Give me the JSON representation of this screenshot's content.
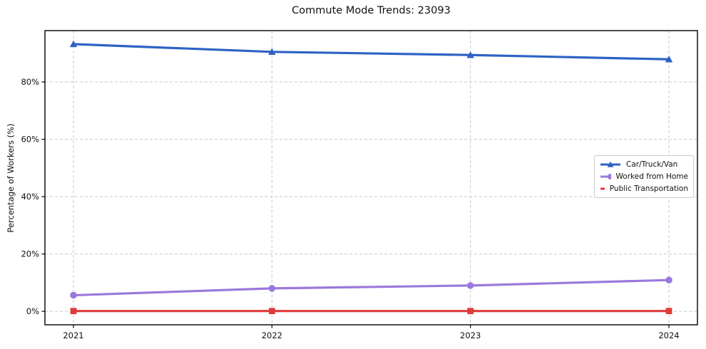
{
  "chart_data": {
    "type": "line",
    "title": "Commute Mode Trends: 23093",
    "xlabel": "",
    "ylabel": "Percentage of Workers (%)",
    "categories": [
      "2021",
      "2022",
      "2023",
      "2024"
    ],
    "x_values": [
      2021,
      2022,
      2023,
      2024
    ],
    "yticks": [
      {
        "label": "0%",
        "value": 0
      },
      {
        "label": "20%",
        "value": 20
      },
      {
        "label": "40%",
        "value": 40
      },
      {
        "label": "60%",
        "value": 60
      },
      {
        "label": "80%",
        "value": 80
      }
    ],
    "ylim": [
      -4.7,
      97.9
    ],
    "grid": "dashed, both axes",
    "grid_color": "#c9c9c9",
    "axis_color": "#000000",
    "legend_position": "center-right",
    "series": [
      {
        "name": "Car/Truck/Van",
        "color": "#2e62c4",
        "marker": "triangle",
        "values": [
          93.2,
          90.5,
          89.4,
          87.9
        ]
      },
      {
        "name": "Worked from Home",
        "color": "#9b79dc",
        "marker": "circle",
        "values": [
          5.6,
          8.0,
          9.0,
          10.9
        ]
      },
      {
        "name": "Public Transportation",
        "color": "#e03a3a",
        "marker": "square",
        "values": [
          0.1,
          0.1,
          0.1,
          0.1
        ]
      }
    ]
  }
}
